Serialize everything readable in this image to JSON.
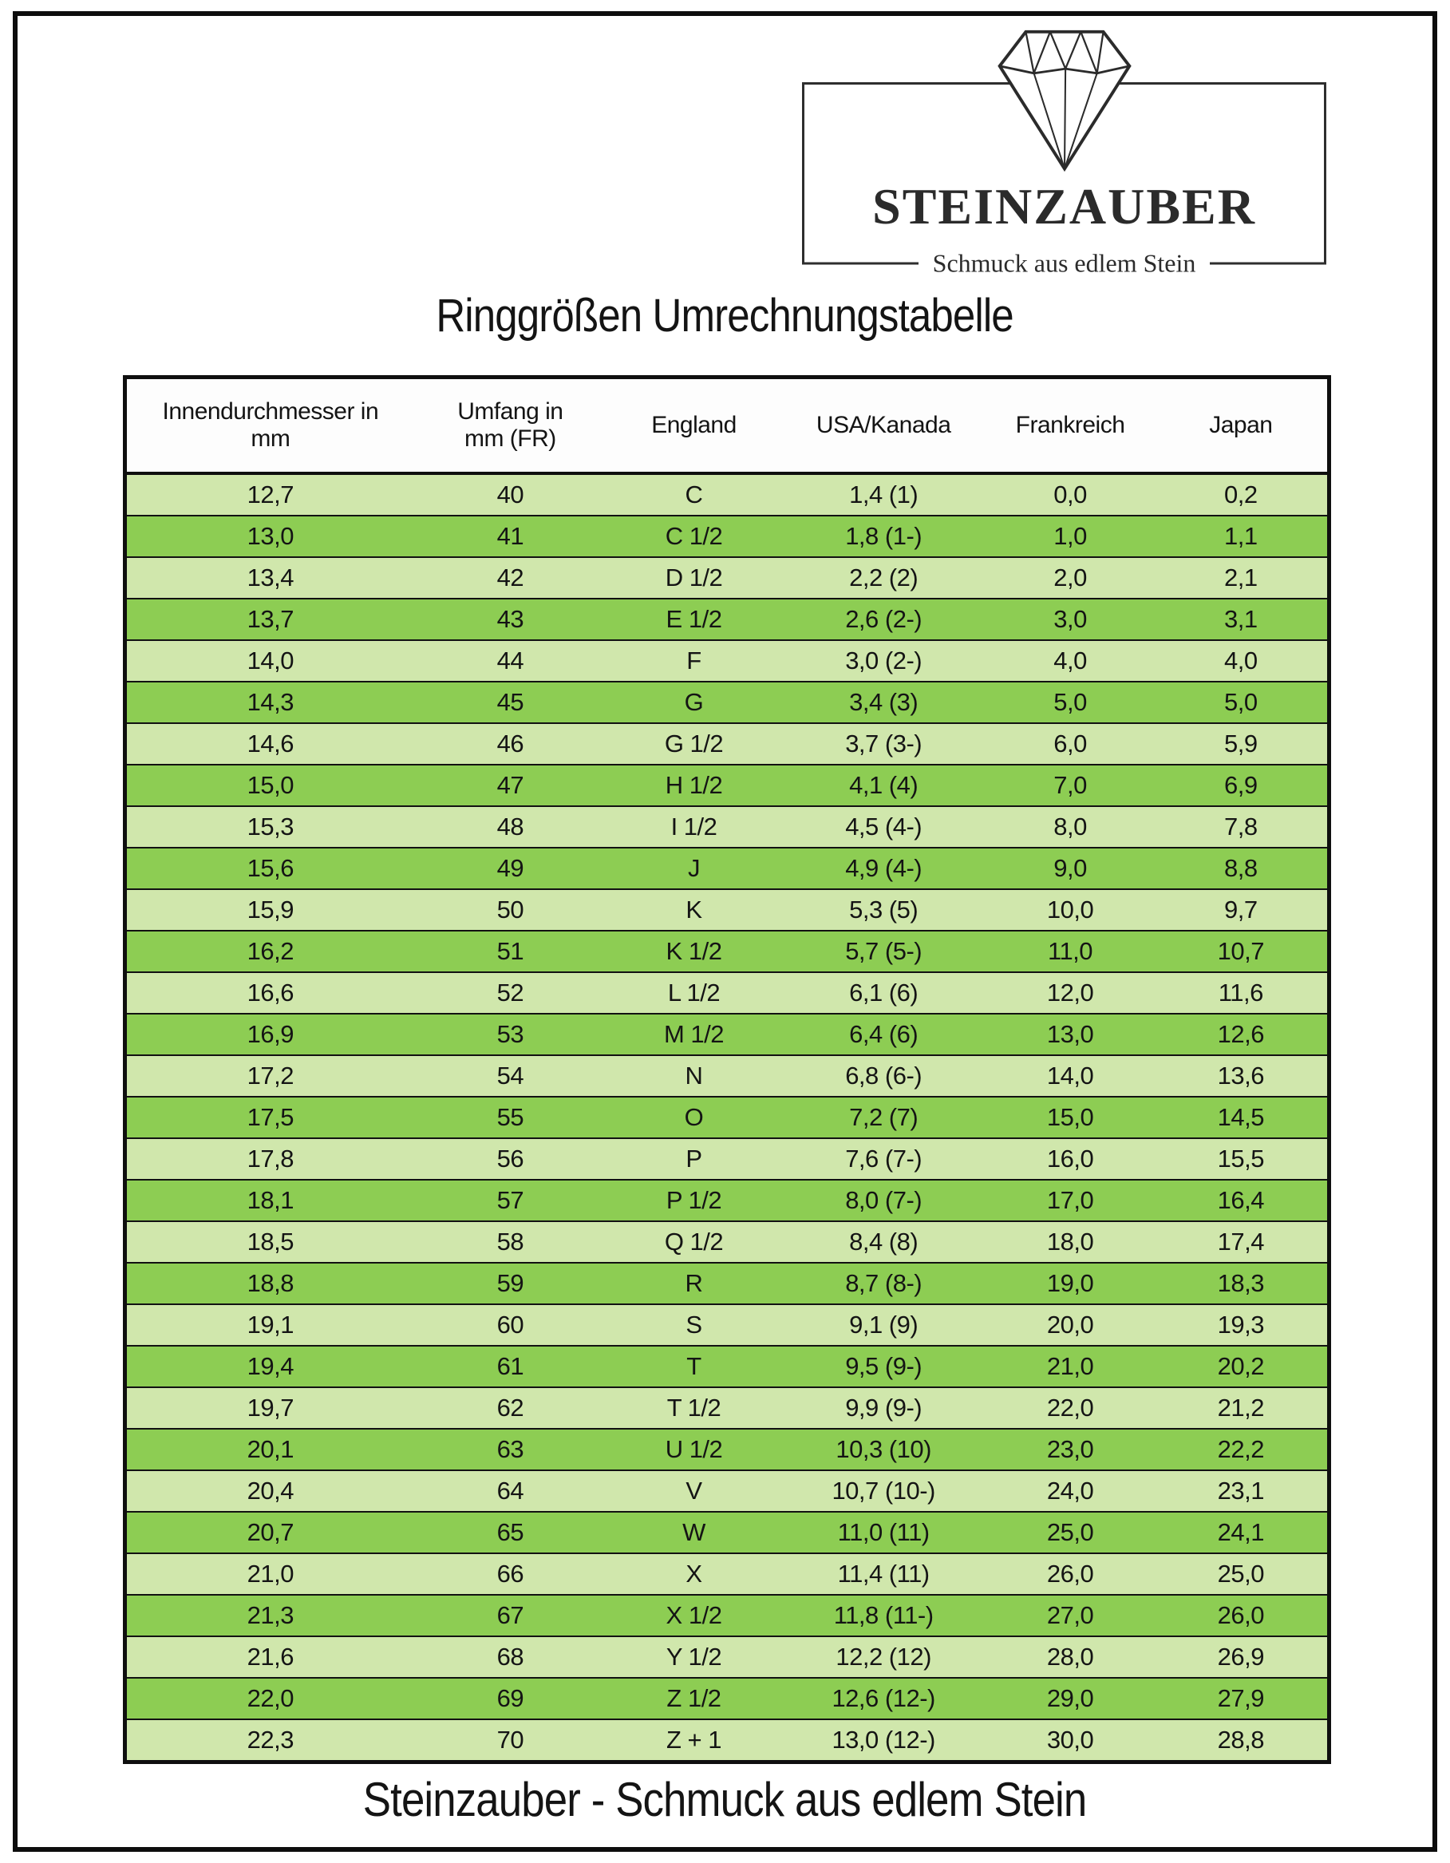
{
  "logo": {
    "brand": "STEINZAUBER",
    "tagline": "Schmuck aus edlem Stein",
    "icon": "diamond-icon"
  },
  "title": "Ringgrößen Umrechnungstabelle",
  "footer": "Steinzauber - Schmuck aus edlem Stein",
  "colors": {
    "row_light": "#d0e7ac",
    "row_dark": "#8dcd53",
    "line": "#111111",
    "frame": "#0d0d0d"
  },
  "table": {
    "headers": [
      "Innendurchmesser in\nmm",
      "Umfang in\nmm (FR)",
      "England",
      "USA/Kanada",
      "Frankreich",
      "Japan"
    ],
    "rows": [
      [
        "12,7",
        "40",
        "C",
        "1,4 (1)",
        "0,0",
        "0,2"
      ],
      [
        "13,0",
        "41",
        "C 1/2",
        "1,8 (1-)",
        "1,0",
        "1,1"
      ],
      [
        "13,4",
        "42",
        "D 1/2",
        "2,2 (2)",
        "2,0",
        "2,1"
      ],
      [
        "13,7",
        "43",
        "E 1/2",
        "2,6 (2-)",
        "3,0",
        "3,1"
      ],
      [
        "14,0",
        "44",
        "F",
        "3,0 (2-)",
        "4,0",
        "4,0"
      ],
      [
        "14,3",
        "45",
        "G",
        "3,4 (3)",
        "5,0",
        "5,0"
      ],
      [
        "14,6",
        "46",
        "G 1/2",
        "3,7 (3-)",
        "6,0",
        "5,9"
      ],
      [
        "15,0",
        "47",
        "H 1/2",
        "4,1 (4)",
        "7,0",
        "6,9"
      ],
      [
        "15,3",
        "48",
        "I 1/2",
        "4,5 (4-)",
        "8,0",
        "7,8"
      ],
      [
        "15,6",
        "49",
        "J",
        "4,9 (4-)",
        "9,0",
        "8,8"
      ],
      [
        "15,9",
        "50",
        "K",
        "5,3 (5)",
        "10,0",
        "9,7"
      ],
      [
        "16,2",
        "51",
        "K 1/2",
        "5,7 (5-)",
        "11,0",
        "10,7"
      ],
      [
        "16,6",
        "52",
        "L 1/2",
        "6,1 (6)",
        "12,0",
        "11,6"
      ],
      [
        "16,9",
        "53",
        "M 1/2",
        "6,4 (6)",
        "13,0",
        "12,6"
      ],
      [
        "17,2",
        "54",
        "N",
        "6,8 (6-)",
        "14,0",
        "13,6"
      ],
      [
        "17,5",
        "55",
        "O",
        "7,2 (7)",
        "15,0",
        "14,5"
      ],
      [
        "17,8",
        "56",
        "P",
        "7,6 (7-)",
        "16,0",
        "15,5"
      ],
      [
        "18,1",
        "57",
        "P 1/2",
        "8,0 (7-)",
        "17,0",
        "16,4"
      ],
      [
        "18,5",
        "58",
        "Q 1/2",
        "8,4 (8)",
        "18,0",
        "17,4"
      ],
      [
        "18,8",
        "59",
        "R",
        "8,7 (8-)",
        "19,0",
        "18,3"
      ],
      [
        "19,1",
        "60",
        "S",
        "9,1 (9)",
        "20,0",
        "19,3"
      ],
      [
        "19,4",
        "61",
        "T",
        "9,5 (9-)",
        "21,0",
        "20,2"
      ],
      [
        "19,7",
        "62",
        "T 1/2",
        "9,9 (9-)",
        "22,0",
        "21,2"
      ],
      [
        "20,1",
        "63",
        "U 1/2",
        "10,3 (10)",
        "23,0",
        "22,2"
      ],
      [
        "20,4",
        "64",
        "V",
        "10,7 (10-)",
        "24,0",
        "23,1"
      ],
      [
        "20,7",
        "65",
        "W",
        "11,0 (11)",
        "25,0",
        "24,1"
      ],
      [
        "21,0",
        "66",
        "X",
        "11,4 (11)",
        "26,0",
        "25,0"
      ],
      [
        "21,3",
        "67",
        "X 1/2",
        "11,8 (11-)",
        "27,0",
        "26,0"
      ],
      [
        "21,6",
        "68",
        "Y 1/2",
        "12,2 (12)",
        "28,0",
        "26,9"
      ],
      [
        "22,0",
        "69",
        "Z 1/2",
        "12,6 (12-)",
        "29,0",
        "27,9"
      ],
      [
        "22,3",
        "70",
        "Z + 1",
        "13,0 (12-)",
        "30,0",
        "28,8"
      ]
    ]
  }
}
